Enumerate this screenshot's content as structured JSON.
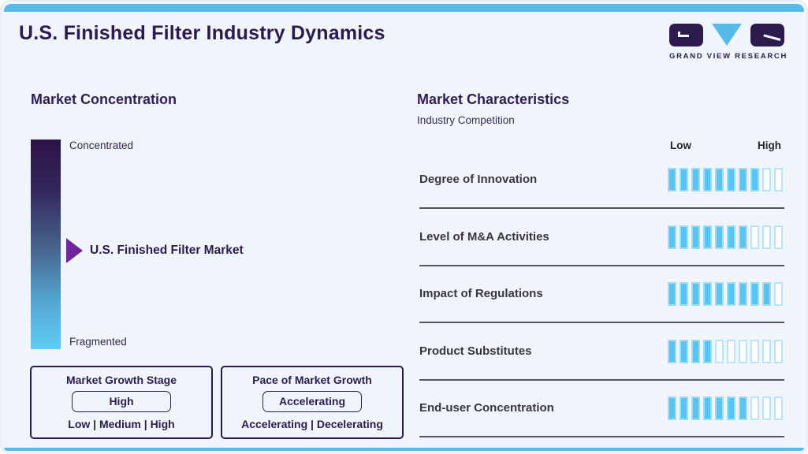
{
  "page": {
    "title": "U.S. Finished Filter Industry Dynamics",
    "accent_cyan": "#57bbe9",
    "accent_purple": "#2d1a4e",
    "background": "#eff5fa"
  },
  "logo": {
    "brand": "GRAND VIEW RESEARCH",
    "shapes": [
      "g-block",
      "down-triangle",
      "r-block"
    ]
  },
  "market_concentration": {
    "heading": "Market Concentration",
    "scale_top": "Concentrated",
    "scale_bottom": "Fragmented",
    "pointer_label": "U.S. Finished Filter Market",
    "gradient_top_color": "#2c1347",
    "gradient_bottom_color": "#5ecdf4",
    "pointer_color": "#70269e"
  },
  "growth_stage_box": {
    "title": "Market Growth Stage",
    "value": "High",
    "options": "Low | Medium | High"
  },
  "pace_box": {
    "title": "Pace of Market Growth",
    "value": "Accelerating",
    "options": "Accelerating | Decelerating"
  },
  "market_characteristics": {
    "heading": "Market Characteristics",
    "subheading": "Industry Competition",
    "scale_low": "Low",
    "scale_high": "High",
    "tick_filled_color": "#58c4ef",
    "rows": [
      {
        "label": "Degree of Innovation",
        "filled": 8,
        "total": 10
      },
      {
        "label": "Level of M&A Activities",
        "filled": 7,
        "total": 10
      },
      {
        "label": "Impact of Regulations",
        "filled": 9,
        "total": 10
      },
      {
        "label": "Product Substitutes",
        "filled": 4,
        "total": 10
      },
      {
        "label": "End-user Concentration",
        "filled": 7,
        "total": 10
      }
    ]
  },
  "chart_data": [
    {
      "type": "bar",
      "title": "Market Characteristics - Industry Competition",
      "categories": [
        "Degree of Innovation",
        "Level of M&A Activities",
        "Impact of Regulations",
        "Product Substitutes",
        "End-user Concentration"
      ],
      "values": [
        8,
        7,
        9,
        4,
        7
      ],
      "xlabel": "Rating (Low to High)",
      "ylabel": "",
      "xlim": [
        0,
        10
      ],
      "grid": false,
      "legend_position": "none",
      "note": "Each row shows filled tick marks out of 10 on a Low-to-High scale"
    },
    {
      "type": "heatmap",
      "title": "Market Concentration gauge",
      "scale": [
        "Concentrated",
        "Fragmented"
      ],
      "marker": "U.S. Finished Filter Market",
      "marker_position_fraction": 0.52,
      "note": "Vertical gradient gauge from Concentrated (dark purple, top) to Fragmented (light blue, bottom); arrow marks market position near the middle"
    }
  ]
}
